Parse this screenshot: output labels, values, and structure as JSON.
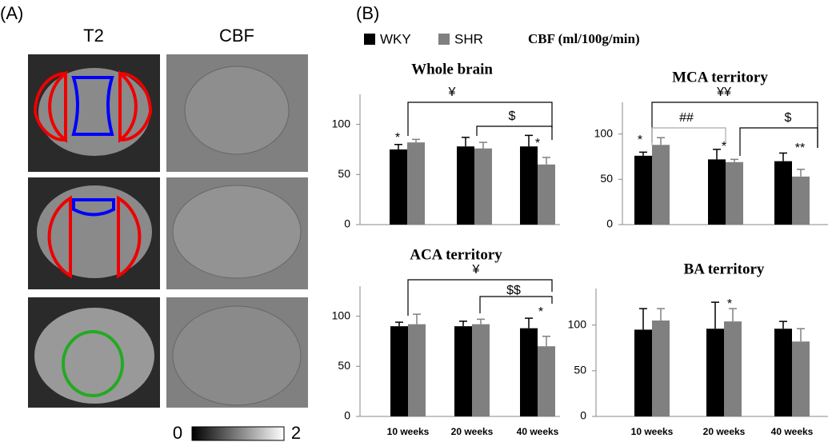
{
  "panel_a": {
    "label": "(A)",
    "columns": [
      "T2",
      "CBF"
    ],
    "colorbar": {
      "min": 0,
      "max": 2
    }
  },
  "panel_b": {
    "label": "(B)",
    "unit": "CBF (ml/100g/min)"
  },
  "chart_data": [
    {
      "type": "bar",
      "title": "Whole brain",
      "categories": [
        null,
        null,
        null
      ],
      "series": [
        {
          "name": "WKY",
          "color": "#000000",
          "values": [
            75,
            78,
            78
          ],
          "errors": [
            5,
            9,
            11
          ]
        },
        {
          "name": "SHR",
          "color": "#808080",
          "values": [
            82,
            76,
            60
          ],
          "errors": [
            3,
            6,
            7
          ]
        }
      ],
      "ylim": [
        0,
        130
      ],
      "yticks": [
        0,
        50,
        100
      ],
      "annotations": [
        "*",
        "¥",
        "$",
        "*"
      ]
    },
    {
      "type": "bar",
      "title": "MCA territory",
      "categories": [
        null,
        null,
        null
      ],
      "series": [
        {
          "name": "WKY",
          "color": "#000000",
          "values": [
            76,
            72,
            70
          ],
          "errors": [
            4,
            11,
            9
          ]
        },
        {
          "name": "SHR",
          "color": "#808080",
          "values": [
            88,
            69,
            53
          ],
          "errors": [
            8,
            3,
            8
          ]
        }
      ],
      "ylim": [
        0,
        135
      ],
      "yticks": [
        0,
        50,
        100
      ],
      "annotations": [
        "*",
        "¥¥",
        "##",
        "$",
        "*",
        "**"
      ]
    },
    {
      "type": "bar",
      "title": "ACA territory",
      "categories": [
        "10 weeks",
        "20 weeks",
        "40 weeks"
      ],
      "series": [
        {
          "name": "WKY",
          "color": "#000000",
          "values": [
            90,
            90,
            88
          ],
          "errors": [
            4,
            5,
            10
          ]
        },
        {
          "name": "SHR",
          "color": "#808080",
          "values": [
            92,
            92,
            70
          ],
          "errors": [
            10,
            5,
            10
          ]
        }
      ],
      "ylim": [
        0,
        130
      ],
      "yticks": [
        0,
        50,
        100
      ],
      "annotations": [
        "¥",
        "$$",
        "*"
      ]
    },
    {
      "type": "bar",
      "title": "BA territory",
      "categories": [
        "10 weeks",
        "20 weeks",
        "40 weeks"
      ],
      "series": [
        {
          "name": "WKY",
          "color": "#000000",
          "values": [
            95,
            96,
            96
          ],
          "errors": [
            23,
            29,
            8
          ]
        },
        {
          "name": "SHR",
          "color": "#808080",
          "values": [
            105,
            104,
            82
          ],
          "errors": [
            13,
            14,
            14
          ]
        }
      ],
      "ylim": [
        0,
        140
      ],
      "yticks": [
        0,
        50,
        100
      ],
      "annotations": [
        "*"
      ]
    }
  ]
}
